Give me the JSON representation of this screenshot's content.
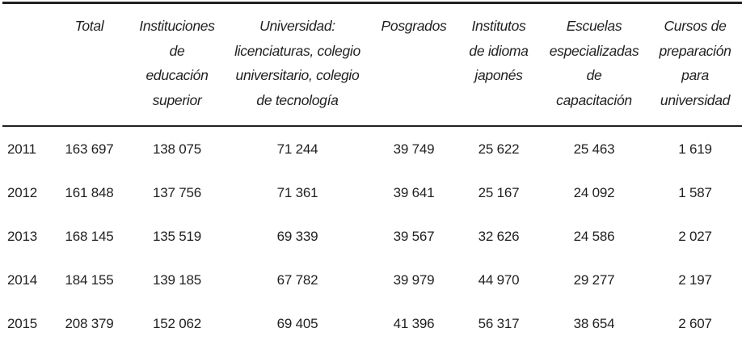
{
  "colors": {
    "text": "#231f20",
    "rule": "#231f20",
    "background": "#ffffff"
  },
  "table": {
    "headers": [
      {
        "id": "year",
        "label": ""
      },
      {
        "id": "total",
        "label": "Total"
      },
      {
        "id": "instituciones-educacion-superior",
        "label": "Instituciones\nde\neducación\nsuperior"
      },
      {
        "id": "universidad-licenciaturas",
        "label": "Universidad:\nlicenciaturas, colegio\nuniversitario, colegio\nde tecnología"
      },
      {
        "id": "posgrados",
        "label": "Posgrados"
      },
      {
        "id": "institutos-idioma-japones",
        "label": "Institutos\nde idioma\njaponés"
      },
      {
        "id": "escuelas-especializadas-capacitacion",
        "label": "Escuelas\nespecializadas\nde\ncapacitación"
      },
      {
        "id": "cursos-preparacion-universidad",
        "label": "Cursos de\npreparación\npara\nuniversidad"
      }
    ],
    "rows": [
      {
        "year": "2011",
        "values": [
          "163 697",
          "138 075",
          "71 244",
          "39 749",
          "25 622",
          "25 463",
          "1 619"
        ]
      },
      {
        "year": "2012",
        "values": [
          "161 848",
          "137 756",
          "71 361",
          "39 641",
          "25 167",
          "24 092",
          "1 587"
        ]
      },
      {
        "year": "2013",
        "values": [
          "168 145",
          "135 519",
          "69 339",
          "39 567",
          "32 626",
          "24 586",
          "2 027"
        ]
      },
      {
        "year": "2014",
        "values": [
          "184 155",
          "139 185",
          "67 782",
          "39 979",
          "44 970",
          "29 277",
          "2 197"
        ]
      },
      {
        "year": "2015",
        "values": [
          "208 379",
          "152 062",
          "69 405",
          "41 396",
          "56 317",
          "38 654",
          "2 607"
        ]
      }
    ]
  },
  "chart_data": {
    "type": "table",
    "categories": [
      "2011",
      "2012",
      "2013",
      "2014",
      "2015"
    ],
    "series": [
      {
        "name": "Total",
        "values": [
          163697,
          161848,
          168145,
          184155,
          208379
        ]
      },
      {
        "name": "Instituciones de educación superior",
        "values": [
          138075,
          137756,
          135519,
          139185,
          152062
        ]
      },
      {
        "name": "Universidad: licenciaturas, colegio universitario, colegio de tecnología",
        "values": [
          71244,
          71361,
          69339,
          67782,
          69405
        ]
      },
      {
        "name": "Posgrados",
        "values": [
          39749,
          39641,
          39567,
          39979,
          41396
        ]
      },
      {
        "name": "Institutos de idioma japonés",
        "values": [
          25622,
          25167,
          32626,
          44970,
          56317
        ]
      },
      {
        "name": "Escuelas especializadas de capacitación",
        "values": [
          25463,
          24092,
          24586,
          29277,
          38654
        ]
      },
      {
        "name": "Cursos de preparación para universidad",
        "values": [
          1619,
          1587,
          2027,
          2197,
          2607
        ]
      }
    ],
    "title": "",
    "xlabel": "",
    "ylabel": ""
  }
}
